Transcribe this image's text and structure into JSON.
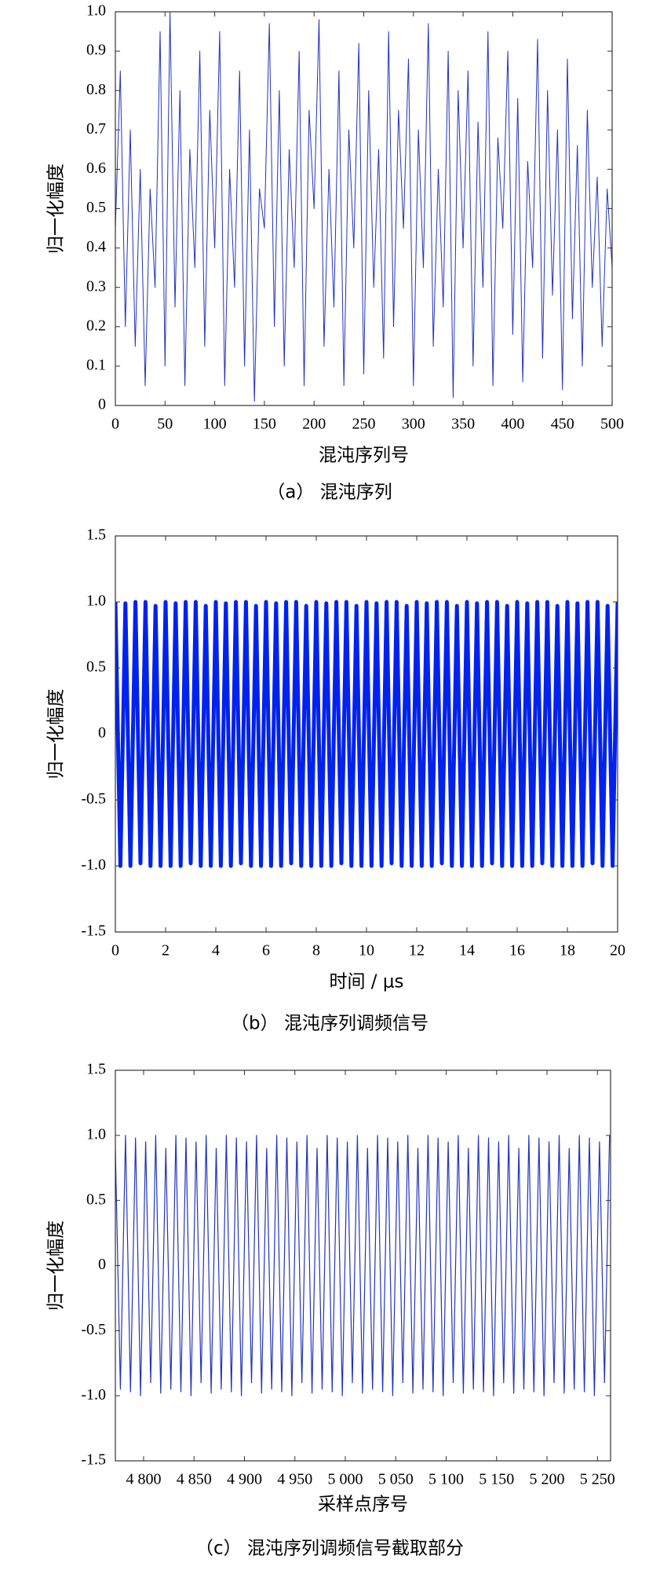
{
  "chart_data": [
    {
      "type": "line",
      "ylabel": "归一化幅度",
      "xlabel": "混沌序列号",
      "caption": "（a） 混沌序列",
      "color": "#2233bb",
      "xlim": [
        0,
        500
      ],
      "ylim": [
        0,
        1
      ],
      "xticks": [
        0,
        50,
        100,
        150,
        200,
        250,
        300,
        350,
        400,
        450,
        500
      ],
      "yticks": [
        0,
        0.1,
        0.2,
        0.3,
        0.4,
        0.5,
        0.6,
        0.7,
        0.8,
        0.9,
        {
          "value": 1,
          "label": "1.0"
        }
      ],
      "x": [
        0,
        5,
        10,
        15,
        20,
        25,
        30,
        35,
        40,
        45,
        50,
        55,
        60,
        65,
        70,
        75,
        80,
        85,
        90,
        95,
        100,
        105,
        110,
        115,
        120,
        125,
        130,
        135,
        140,
        145,
        150,
        155,
        160,
        165,
        170,
        175,
        180,
        185,
        190,
        195,
        200,
        205,
        210,
        215,
        220,
        225,
        230,
        235,
        240,
        245,
        250,
        255,
        260,
        265,
        270,
        275,
        280,
        285,
        290,
        295,
        300,
        305,
        310,
        315,
        320,
        325,
        330,
        335,
        340,
        345,
        350,
        355,
        360,
        365,
        370,
        375,
        380,
        385,
        390,
        395,
        400,
        405,
        410,
        415,
        420,
        425,
        430,
        435,
        440,
        445,
        450,
        455,
        460,
        465,
        470,
        475,
        480,
        485,
        490,
        495,
        500
      ],
      "values": [
        0.45,
        0.85,
        0.2,
        0.7,
        0.15,
        0.6,
        0.05,
        0.55,
        0.3,
        0.95,
        0.1,
        1.0,
        0.25,
        0.8,
        0.05,
        0.65,
        0.35,
        0.9,
        0.15,
        0.75,
        0.4,
        0.95,
        0.05,
        0.6,
        0.3,
        0.85,
        0.1,
        0.7,
        0.01,
        0.55,
        0.45,
        0.97,
        0.2,
        0.8,
        0.1,
        0.65,
        0.35,
        0.9,
        0.05,
        0.75,
        0.5,
        0.98,
        0.15,
        0.6,
        0.25,
        0.85,
        0.05,
        0.7,
        0.4,
        0.92,
        0.08,
        0.8,
        0.3,
        0.65,
        0.12,
        0.95,
        0.2,
        0.75,
        0.45,
        0.88,
        0.05,
        0.7,
        0.35,
        0.97,
        0.15,
        0.6,
        0.25,
        0.9,
        0.02,
        0.8,
        0.4,
        0.85,
        0.1,
        0.72,
        0.3,
        0.95,
        0.05,
        0.68,
        0.45,
        0.9,
        0.18,
        0.78,
        0.06,
        0.62,
        0.35,
        0.93,
        0.12,
        0.8,
        0.28,
        0.7,
        0.04,
        0.88,
        0.22,
        0.66,
        0.1,
        0.75,
        0.3,
        0.58,
        0.15,
        0.55,
        0.35
      ]
    },
    {
      "type": "line",
      "ylabel": "归一化幅度",
      "xlabel": "时间 / μs",
      "caption": "（b） 混沌序列调频信号",
      "color": "#0022ee",
      "xlim": [
        0,
        20
      ],
      "ylim": [
        -1.5,
        1.5
      ],
      "xticks": [
        0,
        2,
        4,
        6,
        8,
        10,
        12,
        14,
        16,
        18,
        20
      ],
      "yticks": [
        -1.5,
        {
          "value": -1,
          "label": "-1.0"
        },
        -0.5,
        0,
        0.5,
        {
          "value": 1,
          "label": "1.0"
        },
        1.5
      ],
      "x": [
        0,
        0.2,
        0.4,
        0.6,
        0.8,
        1,
        1.2,
        1.4,
        1.6,
        1.8,
        2,
        2.2,
        2.4,
        2.6,
        2.8,
        3,
        3.2,
        3.4,
        3.6,
        3.8,
        4,
        4.2,
        4.4,
        4.6,
        4.8,
        5,
        5.2,
        5.4,
        5.6,
        5.8,
        6,
        6.2,
        6.4,
        6.6,
        6.8,
        7,
        7.2,
        7.4,
        7.6,
        7.8,
        8,
        8.2,
        8.4,
        8.6,
        8.8,
        9,
        9.2,
        9.4,
        9.6,
        9.8,
        10,
        10.2,
        10.4,
        10.6,
        10.8,
        11,
        11.2,
        11.4,
        11.6,
        11.8,
        12,
        12.2,
        12.4,
        12.6,
        12.8,
        13,
        13.2,
        13.4,
        13.6,
        13.8,
        14,
        14.2,
        14.4,
        14.6,
        14.8,
        15,
        15.2,
        15.4,
        15.6,
        15.8,
        16,
        16.2,
        16.4,
        16.6,
        16.8,
        17,
        17.2,
        17.4,
        17.6,
        17.8,
        18,
        18.2,
        18.4,
        18.6,
        18.8,
        19,
        19.2,
        19.4,
        19.6,
        19.8,
        20
      ],
      "values": [
        1,
        -1,
        0.99,
        -1,
        1,
        -0.98,
        1,
        -1,
        0.97,
        -1,
        1,
        -1,
        0.99,
        -1,
        1,
        -0.98,
        1,
        -1,
        0.97,
        -1,
        1,
        -1,
        0.99,
        -1,
        1,
        -0.98,
        1,
        -1,
        0.97,
        -1,
        1,
        -1,
        0.99,
        -1,
        1,
        -0.98,
        1,
        -1,
        0.97,
        -1,
        1,
        -1,
        0.99,
        -1,
        1,
        -0.98,
        1,
        -1,
        0.97,
        -1,
        1,
        -1,
        0.99,
        -1,
        1,
        -0.98,
        1,
        -1,
        0.97,
        -1,
        1,
        -1,
        0.99,
        -1,
        1,
        -0.98,
        1,
        -1,
        0.97,
        -1,
        1,
        -1,
        0.99,
        -1,
        1,
        -0.98,
        1,
        -1,
        0.97,
        -1,
        1,
        -1,
        0.99,
        -1,
        1,
        -0.98,
        1,
        -1,
        0.97,
        -1,
        1,
        -1,
        0.99,
        -1,
        1,
        -0.98,
        1,
        -1,
        0.97,
        -1,
        1
      ]
    },
    {
      "type": "line",
      "ylabel": "归一化幅度",
      "xlabel": "采样点序号",
      "caption": "（c） 混沌序列调频信号截取部分",
      "color": "#2233bb",
      "xlim": [
        4772,
        5263
      ],
      "ylim": [
        -1.5,
        1.5
      ],
      "xticks": [
        {
          "value": 4800,
          "label": "4 800"
        },
        {
          "value": 4850,
          "label": "4 850"
        },
        {
          "value": 4900,
          "label": "4 900"
        },
        {
          "value": 4950,
          "label": "4 950"
        },
        {
          "value": 5000,
          "label": "5 000"
        },
        {
          "value": 5050,
          "label": "5 050"
        },
        {
          "value": 5100,
          "label": "5 100"
        },
        {
          "value": 5150,
          "label": "5 150"
        },
        {
          "value": 5200,
          "label": "5 200"
        },
        {
          "value": 5250,
          "label": "5 250"
        }
      ],
      "yticks": [
        -1.5,
        {
          "value": -1,
          "label": "-1.0"
        },
        -0.5,
        0,
        0.5,
        {
          "value": 1,
          "label": "1.0"
        },
        1.5
      ],
      "x": [
        4772,
        4777,
        4782,
        4787,
        4792,
        4797,
        4802,
        4807,
        4812,
        4817,
        4822,
        4827,
        4832,
        4837,
        4842,
        4847,
        4852,
        4857,
        4862,
        4867,
        4872,
        4877,
        4882,
        4887,
        4892,
        4897,
        4902,
        4907,
        4912,
        4917,
        4922,
        4927,
        4932,
        4937,
        4942,
        4947,
        4952,
        4957,
        4962,
        4967,
        4972,
        4977,
        4982,
        4987,
        4992,
        4997,
        5002,
        5007,
        5012,
        5017,
        5022,
        5027,
        5032,
        5037,
        5042,
        5047,
        5052,
        5057,
        5062,
        5067,
        5072,
        5077,
        5082,
        5087,
        5092,
        5097,
        5102,
        5107,
        5112,
        5117,
        5122,
        5127,
        5132,
        5137,
        5142,
        5147,
        5152,
        5157,
        5162,
        5167,
        5172,
        5177,
        5182,
        5187,
        5192,
        5197,
        5202,
        5207,
        5212,
        5217,
        5222,
        5227,
        5232,
        5237,
        5242,
        5247,
        5252,
        5257,
        5262
      ],
      "values": [
        0.9,
        -0.95,
        1,
        -0.97,
        0.98,
        -1,
        0.95,
        -0.9,
        1,
        -0.98,
        0.9,
        -0.95,
        1,
        -0.97,
        0.98,
        -1,
        0.95,
        -0.9,
        1,
        -0.98,
        0.9,
        -0.95,
        1,
        -0.97,
        0.98,
        -1,
        0.95,
        -0.9,
        1,
        -0.98,
        0.9,
        -0.95,
        1,
        -0.97,
        0.98,
        -1,
        0.95,
        -0.9,
        1,
        -0.98,
        0.9,
        -0.95,
        1,
        -0.97,
        0.98,
        -1,
        0.95,
        -0.9,
        1,
        -0.98,
        0.9,
        -0.95,
        1,
        -0.97,
        0.98,
        -1,
        0.95,
        -0.9,
        1,
        -0.98,
        0.9,
        -0.95,
        1,
        -0.97,
        0.98,
        -1,
        0.95,
        -0.9,
        1,
        -0.98,
        0.9,
        -0.95,
        1,
        -0.97,
        0.98,
        -1,
        0.95,
        -0.9,
        1,
        -0.98,
        0.9,
        -0.95,
        1,
        -0.97,
        0.98,
        -1,
        0.95,
        -0.9,
        1,
        -0.98,
        0.9,
        -0.95,
        1,
        -0.97,
        0.98,
        -1,
        0.95,
        -0.9,
        1
      ]
    }
  ]
}
